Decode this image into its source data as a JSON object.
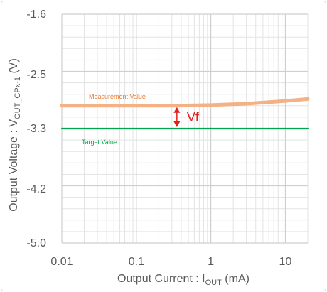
{
  "chart_data": {
    "type": "line",
    "x_scale": "log",
    "xlim": [
      0.01,
      20
    ],
    "ylim": [
      -5.0,
      -1.6
    ],
    "x_ticks": [
      0.01,
      0.1,
      1,
      10
    ],
    "x_tick_labels": [
      "0.01",
      "0.1",
      "1",
      "10"
    ],
    "y_ticks": [
      -1.6,
      -2.5,
      -3.3,
      -4.2,
      -5.0
    ],
    "y_tick_labels": [
      "-1.6",
      "-2.5",
      "-3.3",
      "-4.2",
      "-5.0"
    ],
    "grid": true,
    "xlabel": {
      "main": "Output Current : I",
      "sub": "OUT",
      "tail": " (mA)"
    },
    "ylabel": {
      "main": "Output Voltage : V",
      "sub": "OUT_CPx-1",
      "tail": " (V)"
    },
    "series": [
      {
        "name": "Measurement Value",
        "color": "#f4b183",
        "x": [
          0.01,
          0.03,
          0.1,
          0.3,
          1,
          3,
          10,
          20
        ],
        "y": [
          -2.96,
          -2.96,
          -2.96,
          -2.96,
          -2.95,
          -2.93,
          -2.89,
          -2.86
        ]
      },
      {
        "name": "Target Value",
        "color": "#00a44a",
        "x": [
          0.01,
          20
        ],
        "y": [
          -3.3,
          -3.3
        ]
      }
    ],
    "annotations": {
      "vf": {
        "text": "Vf",
        "x": 0.35,
        "y_from": -2.96,
        "y_to": -3.3,
        "color": "#e0201b"
      },
      "measurement_label": {
        "text": "Measurement Value",
        "color": "#e97a2e"
      },
      "target_label": {
        "text": "Target Value",
        "color": "#00a44a"
      }
    }
  }
}
